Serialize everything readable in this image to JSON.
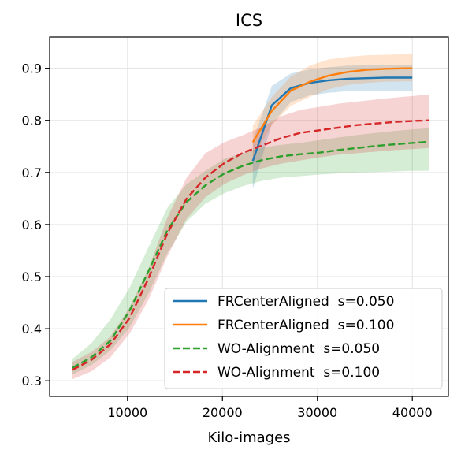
{
  "chart_data": {
    "type": "line",
    "title": "ICS",
    "xlabel": "Kilo-images",
    "ylabel": "",
    "xlim": [
      1800,
      43800
    ],
    "ylim": [
      0.27,
      0.96
    ],
    "xticks": [
      10000,
      20000,
      30000,
      40000
    ],
    "yticks": [
      0.3,
      0.4,
      0.5,
      0.6,
      0.7,
      0.8,
      0.9
    ],
    "xtick_labels": [
      "10000",
      "20000",
      "30000",
      "40000"
    ],
    "ytick_labels": [
      "0.3",
      "0.4",
      "0.5",
      "0.6",
      "0.7",
      "0.8",
      "0.9"
    ],
    "grid": true,
    "legend_position": "lower-right",
    "series": [
      {
        "name": "FRCenterAligned  s=0.050",
        "color": "#1f77b4",
        "dash": "solid",
        "x": [
          23200,
          25200,
          27200,
          29200,
          31200,
          33200,
          35200,
          37200,
          39200,
          40000
        ],
        "y": [
          0.722,
          0.829,
          0.862,
          0.872,
          0.877,
          0.88,
          0.881,
          0.882,
          0.882,
          0.882
        ],
        "lower": [
          0.668,
          0.793,
          0.835,
          0.848,
          0.853,
          0.856,
          0.857,
          0.857,
          0.857,
          0.857
        ],
        "upper": [
          0.76,
          0.866,
          0.89,
          0.898,
          0.902,
          0.905,
          0.906,
          0.907,
          0.907,
          0.907
        ]
      },
      {
        "name": "FRCenterAligned  s=0.100",
        "color": "#ff7f0e",
        "dash": "solid",
        "x": [
          23200,
          25200,
          27200,
          29200,
          31200,
          33200,
          35200,
          37200,
          39200,
          40000
        ],
        "y": [
          0.758,
          0.818,
          0.857,
          0.874,
          0.886,
          0.893,
          0.897,
          0.899,
          0.9,
          0.9
        ],
        "lower": [
          0.728,
          0.79,
          0.828,
          0.845,
          0.86,
          0.868,
          0.872,
          0.874,
          0.875,
          0.875
        ],
        "upper": [
          0.79,
          0.845,
          0.884,
          0.905,
          0.917,
          0.922,
          0.925,
          0.926,
          0.927,
          0.927
        ]
      },
      {
        "name": "WO-Alignment  s=0.050",
        "color": "#2ca02c",
        "dash": "dashed",
        "x": [
          4200,
          6200,
          8200,
          10200,
          12200,
          14200,
          16200,
          18200,
          20200,
          22200,
          24200,
          26200,
          28200,
          30200,
          32200,
          34200,
          36200,
          38200,
          40200,
          41800
        ],
        "y": [
          0.325,
          0.345,
          0.377,
          0.434,
          0.51,
          0.589,
          0.643,
          0.675,
          0.698,
          0.713,
          0.724,
          0.731,
          0.735,
          0.738,
          0.743,
          0.747,
          0.751,
          0.754,
          0.757,
          0.759
        ],
        "lower": [
          0.312,
          0.33,
          0.358,
          0.402,
          0.467,
          0.545,
          0.605,
          0.64,
          0.66,
          0.674,
          0.684,
          0.69,
          0.693,
          0.696,
          0.698,
          0.7,
          0.701,
          0.702,
          0.703,
          0.703
        ],
        "upper": [
          0.342,
          0.372,
          0.418,
          0.478,
          0.556,
          0.632,
          0.677,
          0.703,
          0.726,
          0.738,
          0.748,
          0.753,
          0.757,
          0.762,
          0.767,
          0.772,
          0.776,
          0.78,
          0.783,
          0.785
        ]
      },
      {
        "name": "WO-Alignment  s=0.100",
        "color": "#d62728",
        "dash": "dashed",
        "x": [
          4200,
          6200,
          8200,
          10200,
          12200,
          14200,
          16200,
          18200,
          20200,
          22200,
          24200,
          26200,
          28200,
          30200,
          32200,
          34200,
          36200,
          38200,
          40200,
          41800
        ],
        "y": [
          0.321,
          0.34,
          0.37,
          0.42,
          0.496,
          0.583,
          0.649,
          0.69,
          0.718,
          0.738,
          0.752,
          0.766,
          0.776,
          0.781,
          0.786,
          0.791,
          0.794,
          0.797,
          0.799,
          0.8
        ],
        "lower": [
          0.303,
          0.318,
          0.345,
          0.39,
          0.455,
          0.539,
          0.61,
          0.652,
          0.678,
          0.695,
          0.708,
          0.717,
          0.723,
          0.729,
          0.734,
          0.737,
          0.74,
          0.743,
          0.745,
          0.747
        ],
        "upper": [
          0.336,
          0.355,
          0.385,
          0.44,
          0.515,
          0.613,
          0.689,
          0.737,
          0.758,
          0.772,
          0.788,
          0.808,
          0.82,
          0.826,
          0.832,
          0.836,
          0.84,
          0.844,
          0.847,
          0.85
        ]
      }
    ]
  }
}
